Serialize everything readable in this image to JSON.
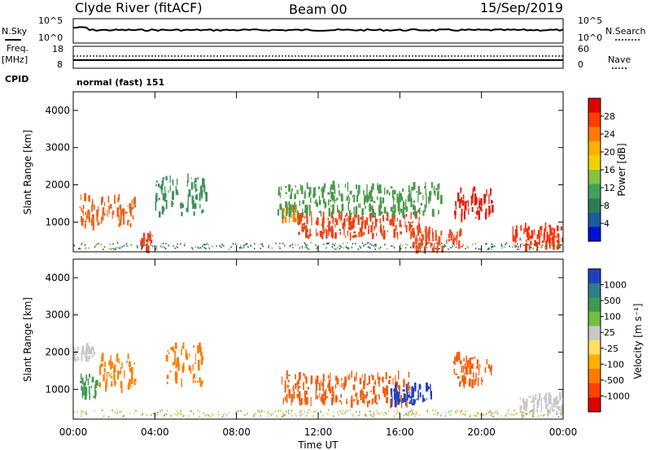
{
  "header": {
    "station": "Clyde River (fitACF)",
    "beam": "Beam 00",
    "date": "15/Sep/2019"
  },
  "strip_labels": {
    "nsky": "N.Sky",
    "nsearch": "N.Search",
    "freq_line1": "Freq.",
    "freq_line2": "[MHz]",
    "nave": "Nave",
    "cpid": "CPID",
    "cpid_value": "normal (fast) 151"
  },
  "strip_ticks": {
    "nsky_left": [
      "10^5",
      "10^0"
    ],
    "nsearch_right": [
      "10^5",
      "10^0"
    ],
    "freq_left": [
      "18",
      "8"
    ],
    "nave_right": [
      "60",
      "0"
    ]
  },
  "chart_data": [
    {
      "type": "heatmap",
      "name": "power",
      "ylabel": "Slant Range [km]",
      "xlabel": "",
      "x_ticks": [
        "00:00",
        "04:00",
        "08:00",
        "12:00",
        "16:00",
        "20:00",
        "00:00"
      ],
      "y_ticks": [
        1000,
        2000,
        3000,
        4000
      ],
      "xlim_hours": [
        0,
        24
      ],
      "ylim_km": [
        200,
        4500
      ],
      "colorbar": {
        "label": "Power [dB]",
        "ticks": [
          "28",
          "24",
          "20",
          "16",
          "12",
          "8",
          "4"
        ],
        "colors": [
          "#e00000",
          "#ff3b00",
          "#ff7a00",
          "#ffb000",
          "#f0d000",
          "#88c040",
          "#40a060",
          "#2e7d50",
          "#1c5aa0",
          "#0010d0"
        ]
      },
      "regions": [
        {
          "t0": 0.3,
          "t1": 3.0,
          "r0": 900,
          "r1": 1700,
          "color": "#f06018"
        },
        {
          "t0": 3.2,
          "t1": 3.9,
          "r0": 250,
          "r1": 650,
          "color": "#e84020"
        },
        {
          "t0": 4.0,
          "t1": 6.5,
          "r0": 1200,
          "r1": 2200,
          "color": "#3d8f5a"
        },
        {
          "t0": 10.2,
          "t1": 11.0,
          "r0": 1000,
          "r1": 1400,
          "color": "#ff8000"
        },
        {
          "t0": 11.0,
          "t1": 17.0,
          "r0": 600,
          "r1": 1200,
          "color": "#f04010"
        },
        {
          "t0": 16.5,
          "t1": 19.0,
          "r0": 250,
          "r1": 800,
          "color": "#f05020"
        },
        {
          "t0": 18.6,
          "t1": 20.5,
          "r0": 1100,
          "r1": 1900,
          "color": "#e02010"
        },
        {
          "t0": 21.5,
          "t1": 24.0,
          "r0": 300,
          "r1": 900,
          "color": "#ff2a00"
        },
        {
          "t0": 10.0,
          "t1": 18.0,
          "r0": 1200,
          "r1": 2000,
          "color": "#4a9a4a"
        }
      ]
    },
    {
      "type": "heatmap",
      "name": "velocity",
      "ylabel": "Slant Range [km]",
      "xlabel": "Time UT",
      "x_ticks": [
        "00:00",
        "04:00",
        "08:00",
        "12:00",
        "16:00",
        "20:00",
        "00:00"
      ],
      "y_ticks": [
        1000,
        2000,
        3000,
        4000
      ],
      "xlim_hours": [
        0,
        24
      ],
      "ylim_km": [
        200,
        4500
      ],
      "colorbar": {
        "label": "Velocity [m s⁻¹]",
        "ticks": [
          "1000",
          "500",
          "100",
          "25",
          "-25",
          "-100",
          "-500",
          "-1000"
        ],
        "colors": [
          "#2040c0",
          "#2e7d8a",
          "#3c9a50",
          "#70c040",
          "#c8c8c8",
          "#ffe060",
          "#ffb000",
          "#ff7a00",
          "#ff4000",
          "#e00000"
        ]
      },
      "regions": [
        {
          "t0": 0.3,
          "t1": 1.2,
          "r0": 800,
          "r1": 1400,
          "color": "#3c9a50"
        },
        {
          "t0": 1.2,
          "t1": 3.0,
          "r0": 1000,
          "r1": 1900,
          "color": "#ff8000"
        },
        {
          "t0": 4.5,
          "t1": 6.4,
          "r0": 1100,
          "r1": 2200,
          "color": "#ff7a00"
        },
        {
          "t0": 10.2,
          "t1": 16.5,
          "r0": 600,
          "r1": 1400,
          "color": "#f06010"
        },
        {
          "t0": 15.5,
          "t1": 17.5,
          "r0": 600,
          "r1": 1100,
          "color": "#2040c0"
        },
        {
          "t0": 18.6,
          "t1": 20.5,
          "r0": 1100,
          "r1": 1900,
          "color": "#ff5a00"
        },
        {
          "t0": 21.8,
          "t1": 24.0,
          "r0": 300,
          "r1": 900,
          "color": "#c8c8c8"
        },
        {
          "t0": 0.0,
          "t1": 1.0,
          "r0": 1800,
          "r1": 2200,
          "color": "#c8c8c8"
        }
      ]
    }
  ]
}
